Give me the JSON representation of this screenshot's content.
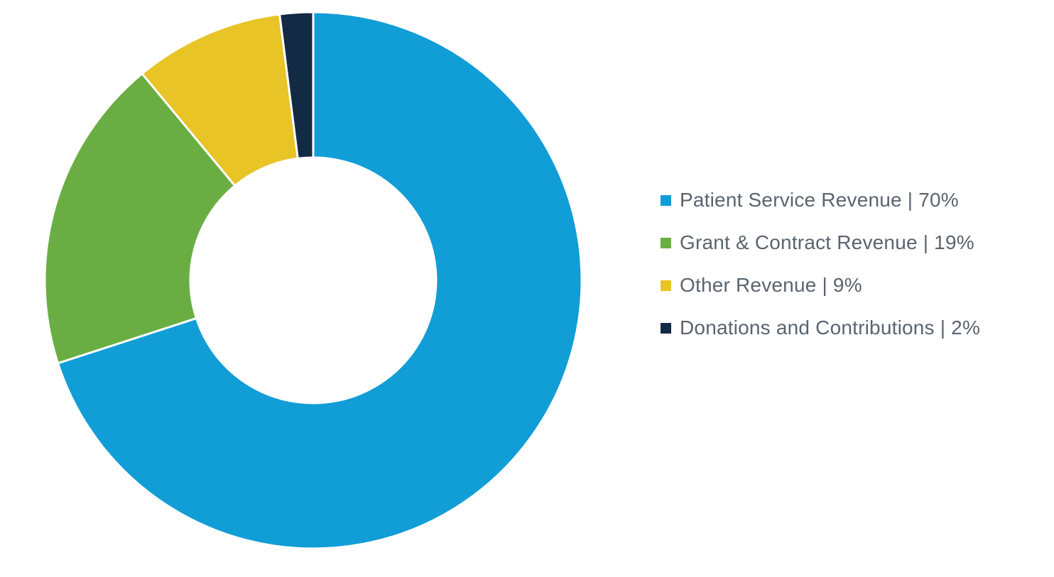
{
  "chart_data": {
    "type": "pie",
    "style": "donut",
    "title": "",
    "legend_position": "right",
    "series": [
      {
        "name": "Patient Service Revenue",
        "value": 70,
        "label": "Patient Service Revenue | 70%",
        "color": "#119dd6"
      },
      {
        "name": "Grant & Contract Revenue",
        "value": 19,
        "label": "Grant & Contract Revenue | 19%",
        "color": "#6aae43"
      },
      {
        "name": "Other Revenue",
        "value": 9,
        "label": "Other Revenue | 9%",
        "color": "#e8c427"
      },
      {
        "name": "Donations and Contributions",
        "value": 2,
        "label": "Donations and Contributions | 2%",
        "color": "#132a44"
      }
    ]
  }
}
